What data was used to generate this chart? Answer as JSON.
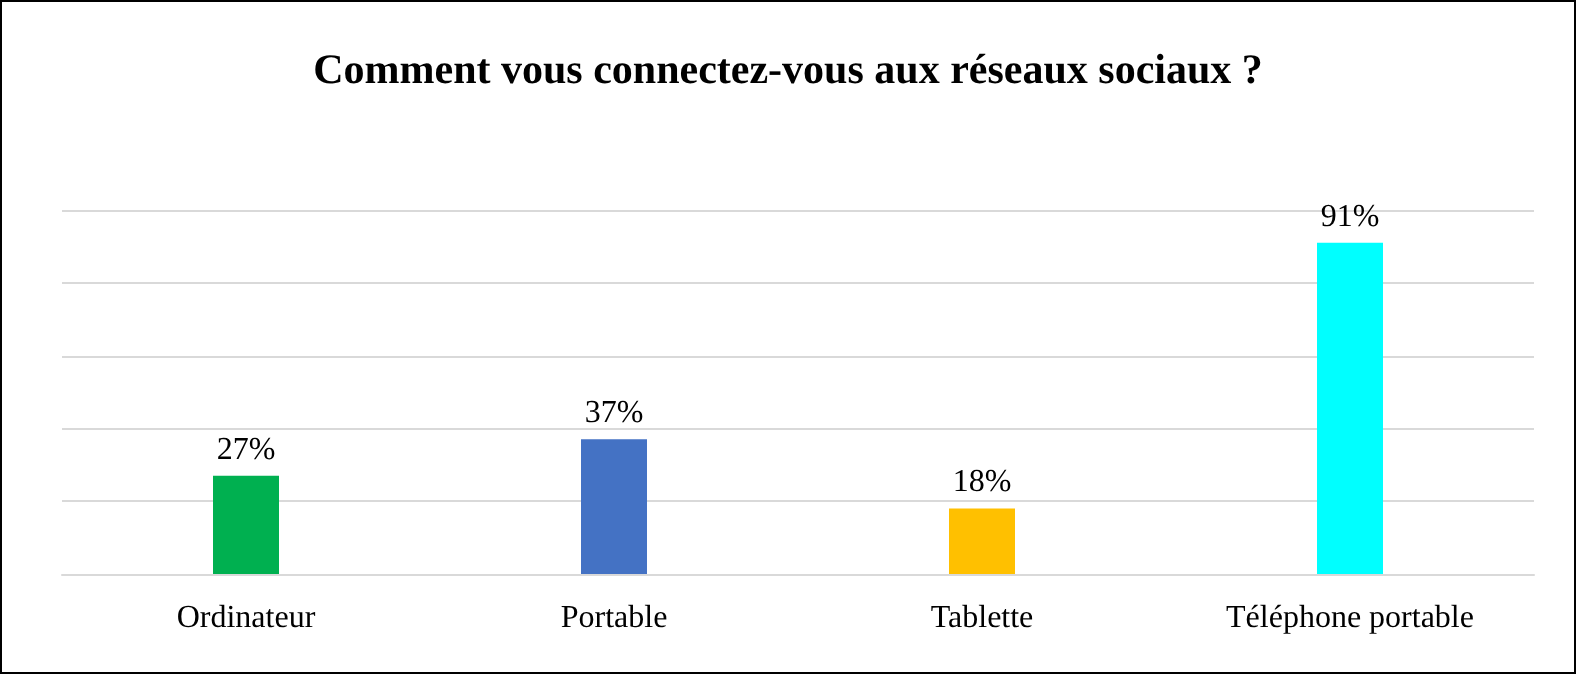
{
  "chart_data": {
    "type": "bar",
    "title": "Comment vous connectez-vous aux réseaux sociaux ?",
    "categories": [
      "Ordinateur",
      "Portable",
      "Tablette",
      "Téléphone portable"
    ],
    "values": [
      27,
      37,
      18,
      91
    ],
    "colors": [
      "#00b050",
      "#4472c4",
      "#ffc000",
      "#00ffff"
    ],
    "value_labels": [
      "27%",
      "37%",
      "18%",
      "91%"
    ],
    "ylim": [
      0,
      100
    ],
    "yticks": [
      0,
      20,
      40,
      60,
      80,
      100
    ],
    "grid": "y",
    "tick_labels": "x"
  }
}
